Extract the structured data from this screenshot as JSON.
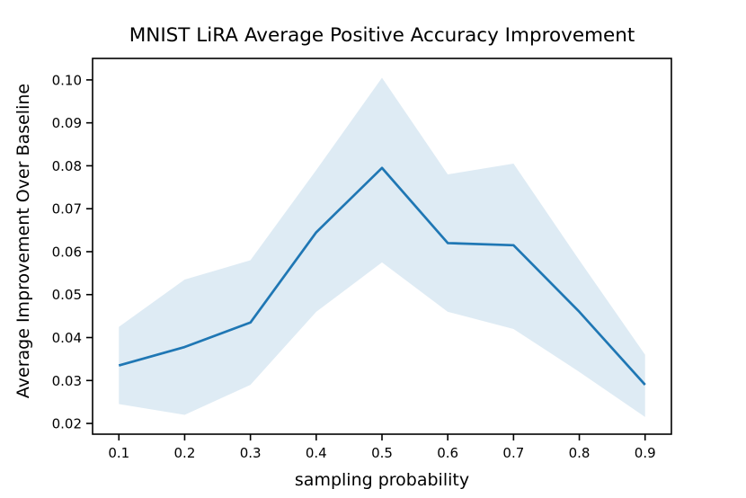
{
  "chart_data": {
    "type": "line",
    "title": "MNIST LiRA Average Positive Accuracy Improvement",
    "xlabel": "sampling probability",
    "ylabel": "Average Improvement Over Baseline",
    "x": [
      0.1,
      0.2,
      0.3,
      0.4,
      0.5,
      0.6,
      0.7,
      0.8,
      0.9
    ],
    "series": [
      {
        "name": "average-improvement",
        "values": [
          0.0335,
          0.0378,
          0.0435,
          0.0645,
          0.0795,
          0.062,
          0.0615,
          0.046,
          0.029
        ],
        "color": "#1f77b4",
        "line_width": 2.7
      }
    ],
    "band": {
      "name": "confidence-band",
      "lower": [
        0.0245,
        0.022,
        0.029,
        0.046,
        0.0575,
        0.046,
        0.042,
        0.032,
        0.0215
      ],
      "upper": [
        0.0425,
        0.0535,
        0.058,
        0.079,
        0.1005,
        0.078,
        0.0805,
        0.058,
        0.036
      ],
      "fill_color": "#1f77b4",
      "fill_opacity": 0.15
    },
    "xlim": [
      0.06,
      0.94
    ],
    "ylim": [
      0.0175,
      0.105
    ],
    "xticks": [
      "0.1",
      "0.2",
      "0.3",
      "0.4",
      "0.5",
      "0.6",
      "0.7",
      "0.8",
      "0.9"
    ],
    "yticks": [
      "0.02",
      "0.03",
      "0.04",
      "0.05",
      "0.06",
      "0.07",
      "0.08",
      "0.09",
      "0.10"
    ],
    "grid": false,
    "legend": null,
    "spine_color": "#000000"
  }
}
